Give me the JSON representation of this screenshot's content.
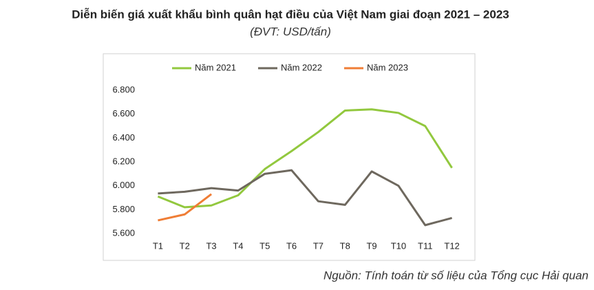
{
  "chart_data": {
    "type": "line",
    "title": "Diễn biến giá xuất khẩu bình quân hạt điều của Việt Nam giai đoạn 2021 – 2023",
    "subtitle": "(ĐVT: USD/tấn)",
    "source": "Nguồn: Tính toán từ số liệu của Tổng cục Hải quan",
    "categories": [
      "T1",
      "T2",
      "T3",
      "T4",
      "T5",
      "T6",
      "T7",
      "T8",
      "T9",
      "T10",
      "T11",
      "T12"
    ],
    "series": [
      {
        "name": "Năm 2021",
        "color": "#92c83e",
        "values": [
          5910,
          5820,
          5835,
          5920,
          6140,
          6290,
          6450,
          6630,
          6640,
          6610,
          6500,
          6150
        ]
      },
      {
        "name": "Năm 2022",
        "color": "#6e685e",
        "values": [
          5935,
          5950,
          5980,
          5960,
          6100,
          6130,
          5870,
          5840,
          6120,
          6000,
          5670,
          5730
        ]
      },
      {
        "name": "Năm 2023",
        "color": "#ef7d35",
        "values": [
          5710,
          5760,
          5930,
          null,
          null,
          null,
          null,
          null,
          null,
          null,
          null,
          null
        ]
      }
    ],
    "ylim": [
      5600,
      6800
    ],
    "yticks": [
      {
        "value": 5600,
        "label": "5.600"
      },
      {
        "value": 5800,
        "label": "5.800"
      },
      {
        "value": 6000,
        "label": "6.000"
      },
      {
        "value": 6200,
        "label": "6.200"
      },
      {
        "value": 6400,
        "label": "6.400"
      },
      {
        "value": 6600,
        "label": "6.600"
      },
      {
        "value": 6800,
        "label": "6.800"
      }
    ],
    "grid": false,
    "legend": "top"
  }
}
